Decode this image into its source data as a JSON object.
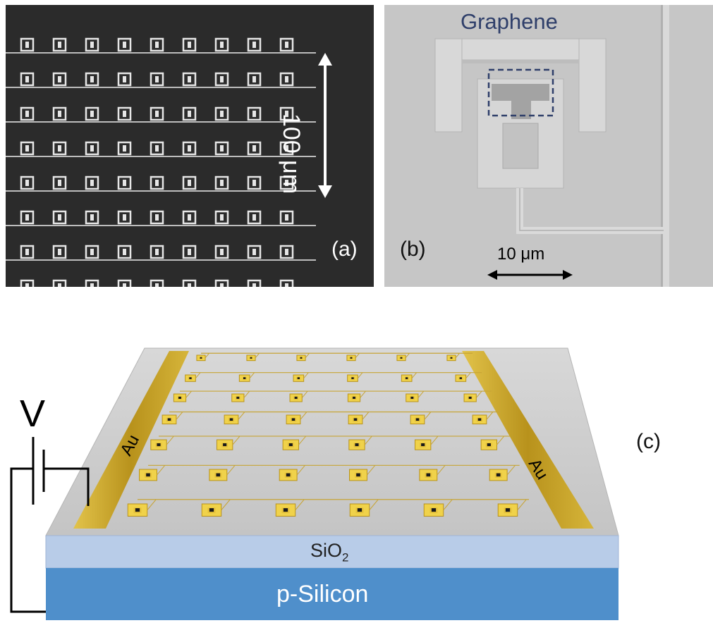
{
  "panel_a": {
    "label": "(a)",
    "scale_text": "100 μm"
  },
  "panel_b": {
    "label": "(b)",
    "material_label": "Graphene",
    "scale_text": "10 μm"
  },
  "panel_c": {
    "label": "(c)",
    "voltage_label": "V",
    "left_electrode": "Au",
    "right_electrode": "Au",
    "oxide_base": "SiO",
    "oxide_sub": "2",
    "substrate": "p-Silicon",
    "array_rows": 7,
    "array_cols": 6
  },
  "colors": {
    "sem_dark": "#2b2b2b",
    "sem_light": "#c8c8c8",
    "gold": "#c9a227",
    "oxide": "#b8cce8",
    "silicon": "#4f8fcb",
    "graphene_label": "#2f3f6a"
  }
}
